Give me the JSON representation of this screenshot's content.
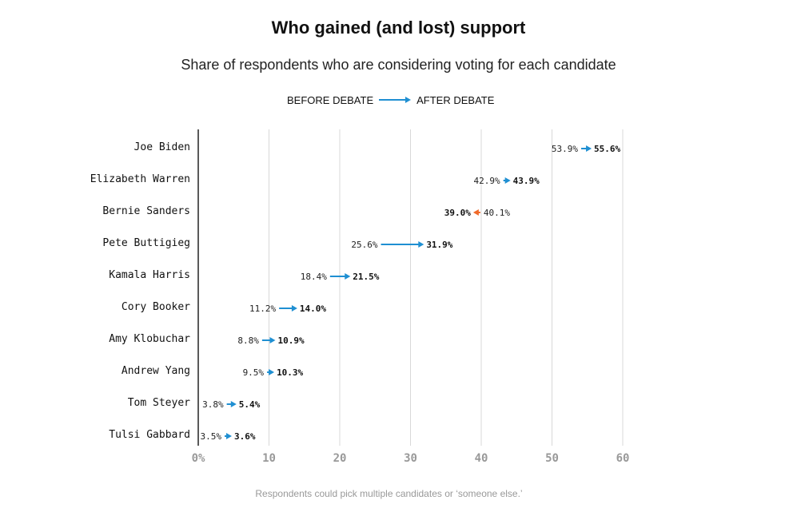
{
  "chart_data": {
    "type": "dot-arrow",
    "title": "Who gained (and lost) support",
    "subtitle": "Share of respondents who are considering voting for each candidate",
    "legend": {
      "before": "BEFORE DEBATE",
      "after": "AFTER DEBATE",
      "placement": "top-center"
    },
    "note": "Respondents could pick multiple candidates or ‘someone else.’",
    "xlim": [
      0,
      60
    ],
    "xticks": [
      "0%",
      "10",
      "20",
      "30",
      "40",
      "50",
      "60"
    ],
    "grid": true,
    "colors": {
      "gain": "#1f8fd2",
      "loss": "#f06a2a",
      "grid": "#d8d8d8",
      "axis": "#222222",
      "tick": "#999999"
    },
    "series": [
      {
        "name": "Joe Biden",
        "before": 53.9,
        "after": 55.6,
        "before_label": "53.9%",
        "after_label": "55.6%"
      },
      {
        "name": "Elizabeth Warren",
        "before": 42.9,
        "after": 43.9,
        "before_label": "42.9%",
        "after_label": "43.9%"
      },
      {
        "name": "Bernie Sanders",
        "before": 40.1,
        "after": 39.0,
        "before_label": "40.1%",
        "after_label": "39.0%"
      },
      {
        "name": "Pete Buttigieg",
        "before": 25.6,
        "after": 31.9,
        "before_label": "25.6%",
        "after_label": "31.9%"
      },
      {
        "name": "Kamala Harris",
        "before": 18.4,
        "after": 21.5,
        "before_label": "18.4%",
        "after_label": "21.5%"
      },
      {
        "name": "Cory Booker",
        "before": 11.2,
        "after": 14.0,
        "before_label": "11.2%",
        "after_label": "14.0%"
      },
      {
        "name": "Amy Klobuchar",
        "before": 8.8,
        "after": 10.9,
        "before_label": "8.8%",
        "after_label": "10.9%"
      },
      {
        "name": "Andrew Yang",
        "before": 9.5,
        "after": 10.3,
        "before_label": "9.5%",
        "after_label": "10.3%"
      },
      {
        "name": "Tom Steyer",
        "before": 3.8,
        "after": 5.4,
        "before_label": "3.8%",
        "after_label": "5.4%"
      },
      {
        "name": "Tulsi Gabbard",
        "before": 3.5,
        "after": 3.6,
        "before_label": "3.5%",
        "after_label": "3.6%"
      }
    ]
  }
}
